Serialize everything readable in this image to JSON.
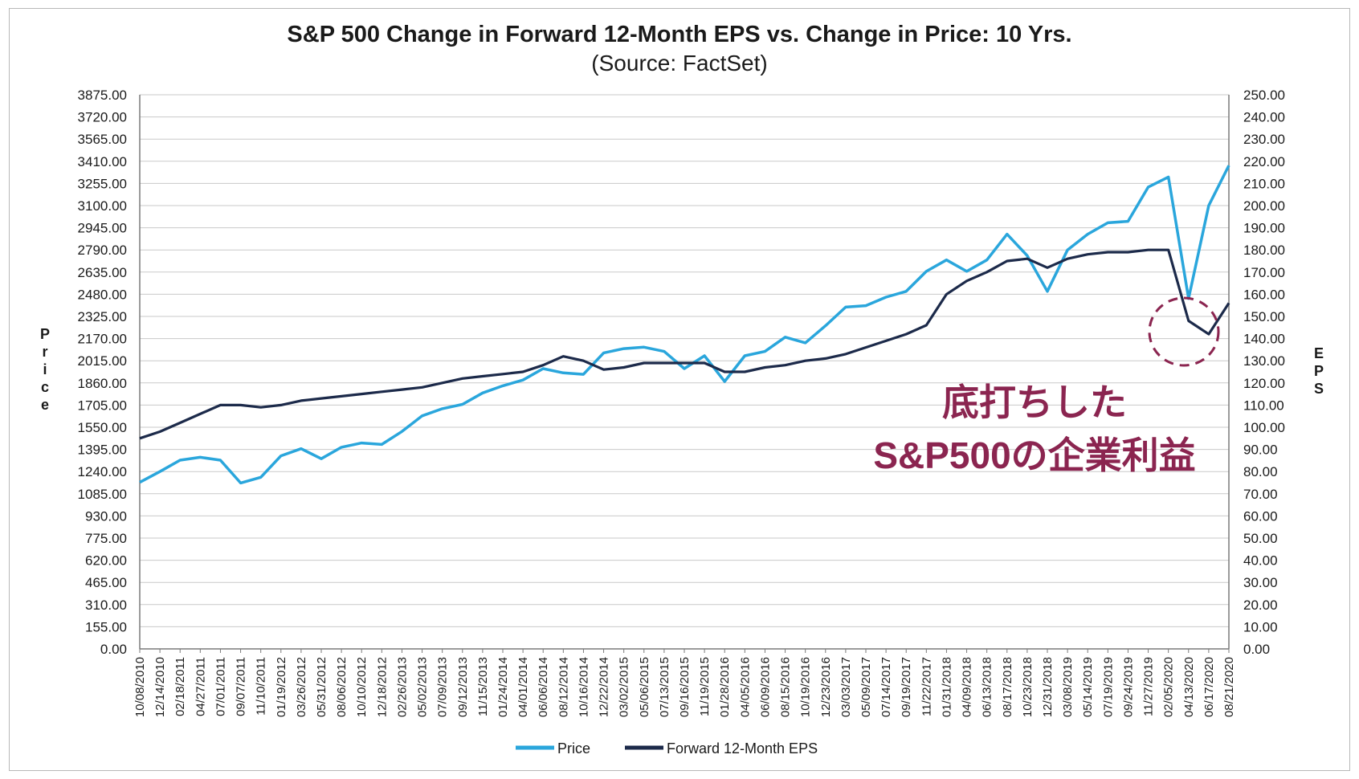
{
  "chart_data": {
    "type": "line",
    "title": "S&P 500 Change in Forward 12-Month EPS vs. Change in Price: 10 Yrs.",
    "subtitle": "(Source: FactSet)",
    "ylabel_left": "Price",
    "ylabel_right": "EPS",
    "ylim_left": [
      0,
      3875
    ],
    "ylim_right": [
      0,
      250
    ],
    "y_ticks_left": [
      "0.00",
      "155.00",
      "310.00",
      "465.00",
      "620.00",
      "775.00",
      "930.00",
      "1085.00",
      "1240.00",
      "1395.00",
      "1550.00",
      "1705.00",
      "1860.00",
      "2015.00",
      "2170.00",
      "2325.00",
      "2480.00",
      "2635.00",
      "2790.00",
      "2945.00",
      "3100.00",
      "3255.00",
      "3410.00",
      "3565.00",
      "3720.00",
      "3875.00"
    ],
    "y_ticks_right": [
      "0.00",
      "10.00",
      "20.00",
      "30.00",
      "40.00",
      "50.00",
      "60.00",
      "70.00",
      "80.00",
      "90.00",
      "100.00",
      "110.00",
      "120.00",
      "130.00",
      "140.00",
      "150.00",
      "160.00",
      "170.00",
      "180.00",
      "190.00",
      "200.00",
      "210.00",
      "220.00",
      "230.00",
      "240.00",
      "250.00"
    ],
    "x_ticks": [
      "10/08/2010",
      "12/14/2010",
      "02/18/2011",
      "04/27/2011",
      "07/01/2011",
      "09/07/2011",
      "11/10/2011",
      "01/19/2012",
      "03/26/2012",
      "05/31/2012",
      "08/06/2012",
      "10/10/2012",
      "12/18/2012",
      "02/26/2013",
      "05/02/2013",
      "07/09/2013",
      "09/12/2013",
      "11/15/2013",
      "01/24/2014",
      "04/01/2014",
      "06/06/2014",
      "08/12/2014",
      "10/16/2014",
      "12/22/2014",
      "03/02/2015",
      "05/06/2015",
      "07/13/2015",
      "09/16/2015",
      "11/19/2015",
      "01/28/2016",
      "04/05/2016",
      "06/09/2016",
      "08/15/2016",
      "10/19/2016",
      "12/23/2016",
      "03/03/2017",
      "05/09/2017",
      "07/14/2017",
      "09/19/2017",
      "11/22/2017",
      "01/31/2018",
      "04/09/2018",
      "06/13/2018",
      "08/17/2018",
      "10/23/2018",
      "12/31/2018",
      "03/08/2019",
      "05/14/2019",
      "07/19/2019",
      "09/24/2019",
      "11/27/2019",
      "02/05/2020",
      "04/13/2020",
      "06/17/2020",
      "08/21/2020"
    ],
    "series": [
      {
        "name": "Price",
        "color": "#2aa6dc",
        "axis": "left",
        "x": [
          0,
          1,
          2,
          3,
          4,
          5,
          6,
          7,
          8,
          9,
          10,
          11,
          12,
          13,
          14,
          15,
          16,
          17,
          18,
          19,
          20,
          21,
          22,
          23,
          24,
          25,
          26,
          27,
          28,
          29,
          30,
          31,
          32,
          33,
          34,
          35,
          36,
          37,
          38,
          39,
          40,
          41,
          42,
          43,
          44,
          45,
          46,
          47,
          48,
          49,
          50,
          51,
          52,
          53,
          54
        ],
        "values": [
          1165,
          1240,
          1320,
          1340,
          1320,
          1160,
          1200,
          1350,
          1400,
          1330,
          1410,
          1440,
          1430,
          1520,
          1630,
          1680,
          1710,
          1790,
          1840,
          1880,
          1960,
          1930,
          1920,
          2070,
          2100,
          2110,
          2080,
          1960,
          2050,
          1870,
          2050,
          2080,
          2180,
          2140,
          2260,
          2390,
          2400,
          2460,
          2500,
          2640,
          2720,
          2640,
          2720,
          2900,
          2750,
          2500,
          2790,
          2900,
          2980,
          2990,
          3230,
          3300,
          2450,
          3100,
          3380
        ]
      },
      {
        "name": "Forward 12-Month EPS",
        "color": "#1c2a4a",
        "axis": "right",
        "x": [
          0,
          1,
          2,
          3,
          4,
          5,
          6,
          7,
          8,
          9,
          10,
          11,
          12,
          13,
          14,
          15,
          16,
          17,
          18,
          19,
          20,
          21,
          22,
          23,
          24,
          25,
          26,
          27,
          28,
          29,
          30,
          31,
          32,
          33,
          34,
          35,
          36,
          37,
          38,
          39,
          40,
          41,
          42,
          43,
          44,
          45,
          46,
          47,
          48,
          49,
          50,
          51,
          52,
          53,
          54
        ],
        "values": [
          95,
          98,
          102,
          106,
          110,
          110,
          109,
          110,
          112,
          113,
          114,
          115,
          116,
          117,
          118,
          120,
          122,
          123,
          124,
          125,
          128,
          132,
          130,
          126,
          127,
          129,
          129,
          129,
          129,
          125,
          125,
          127,
          128,
          130,
          131,
          133,
          136,
          139,
          142,
          146,
          160,
          166,
          170,
          175,
          176,
          172,
          176,
          178,
          179,
          179,
          180,
          180,
          148,
          142,
          156
        ]
      }
    ],
    "grid": true,
    "legend_position": "bottom-center",
    "annotation": {
      "line1": "底打ちした",
      "line2": "S&P500の企業利益"
    }
  }
}
